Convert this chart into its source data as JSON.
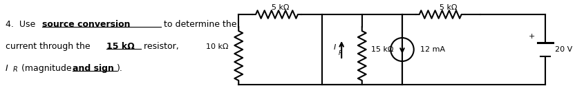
{
  "bg_color": "#ffffff",
  "line_color": "#000000",
  "fig_width": 8.32,
  "fig_height": 1.41,
  "dpi": 100,
  "label_5k_left": "5 kΩ",
  "label_5k_right": "5 kΩ",
  "label_10k": "10 kΩ",
  "label_15k": "15 kΩ",
  "label_12mA": "12 mA",
  "label_20V": "20 V"
}
